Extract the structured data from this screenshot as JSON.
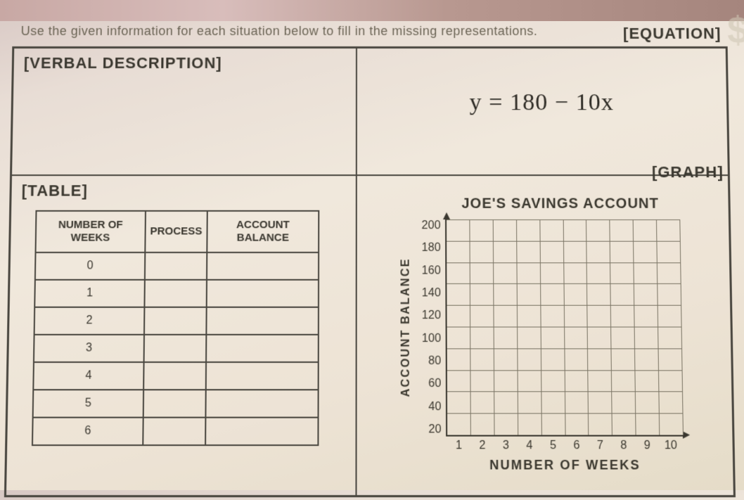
{
  "instruction": "Use the given information for each situation below to fill in the missing representations.",
  "labels": {
    "verbal": "[VERBAL DESCRIPTION]",
    "equation": "[EQUATION]",
    "table": "[TABLE]",
    "graph": "[GRAPH]"
  },
  "equation_text": "y = 180 − 10x",
  "table": {
    "headers": [
      "NUMBER OF WEEKS",
      "PROCESS",
      "ACCOUNT BALANCE"
    ],
    "rows": [
      [
        "0",
        "",
        ""
      ],
      [
        "1",
        "",
        ""
      ],
      [
        "2",
        "",
        ""
      ],
      [
        "3",
        "",
        ""
      ],
      [
        "4",
        "",
        ""
      ],
      [
        "5",
        "",
        ""
      ],
      [
        "6",
        "",
        ""
      ]
    ],
    "border_color": "#4a4740",
    "header_fontsize": 15,
    "cell_fontsize": 16
  },
  "chart": {
    "type": "scatter-grid",
    "title": "JOE'S SAVINGS ACCOUNT",
    "title_fontsize": 20,
    "xlabel": "NUMBER OF WEEKS",
    "ylabel": "ACCOUNT BALANCE",
    "label_fontsize": 16,
    "xlim": [
      0,
      10
    ],
    "ylim": [
      0,
      200
    ],
    "xtick_step": 1,
    "ytick_step": 20,
    "xticks": [
      1,
      2,
      3,
      4,
      5,
      6,
      7,
      8,
      9,
      10
    ],
    "yticks": [
      200,
      180,
      160,
      140,
      120,
      100,
      80,
      60,
      40,
      20
    ],
    "grid_color": "#7a7464",
    "axis_color": "#3a372f",
    "background_color": "transparent",
    "data_points": []
  },
  "decorative": {
    "dollar_glyph": "$"
  },
  "colors": {
    "text": "#3a3834",
    "border": "#4a4740",
    "paper_top": "#e8ddd5",
    "paper_bottom": "#e5dcc8"
  }
}
